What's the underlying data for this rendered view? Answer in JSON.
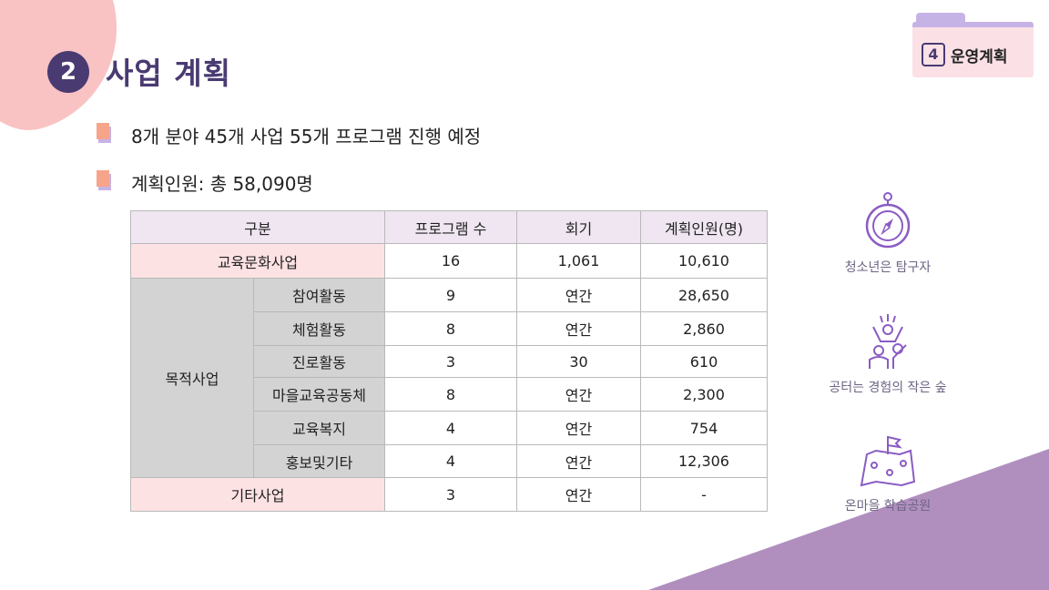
{
  "header": {
    "section_number": "2",
    "title": "사업 계획"
  },
  "tab": {
    "number": "4",
    "label": "운영계획"
  },
  "bullets": [
    {
      "text": "8개 분야 45개 사업 55개 프로그램 진행 예정"
    },
    {
      "text": "계획인원: 총 58,090명"
    }
  ],
  "table": {
    "headers": [
      "구분",
      "프로그램 수",
      "회기",
      "계획인원(명)"
    ],
    "row_culture": {
      "category": "교육문화사업",
      "programs": "16",
      "sessions": "1,061",
      "people": "10,610"
    },
    "purpose_group": "목적사업",
    "purpose_rows": [
      {
        "name": "참여활동",
        "programs": "9",
        "sessions": "연간",
        "people": "28,650"
      },
      {
        "name": "체험활동",
        "programs": "8",
        "sessions": "연간",
        "people": "2,860"
      },
      {
        "name": "진로활동",
        "programs": "3",
        "sessions": "30",
        "people": "610"
      },
      {
        "name": "마을교육공동체",
        "programs": "8",
        "sessions": "연간",
        "people": "2,300"
      },
      {
        "name": "교육복지",
        "programs": "4",
        "sessions": "연간",
        "people": "754"
      },
      {
        "name": "홍보및기타",
        "programs": "4",
        "sessions": "연간",
        "people": "12,306"
      }
    ],
    "row_other": {
      "category": "기타사업",
      "programs": "3",
      "sessions": "연간",
      "people": "-"
    }
  },
  "icons": [
    {
      "icon": "compass-icon",
      "label": "청소년은 탐구자"
    },
    {
      "icon": "people-cheering-icon",
      "label": "공터는 경험의 작은 숲"
    },
    {
      "icon": "map-flag-icon",
      "label": "온마을 학습공원"
    }
  ],
  "colors": {
    "accent": "#4a3a72",
    "icon": "#8a5cc4",
    "pink": "#fde2e4",
    "corner": "#a783b8"
  }
}
